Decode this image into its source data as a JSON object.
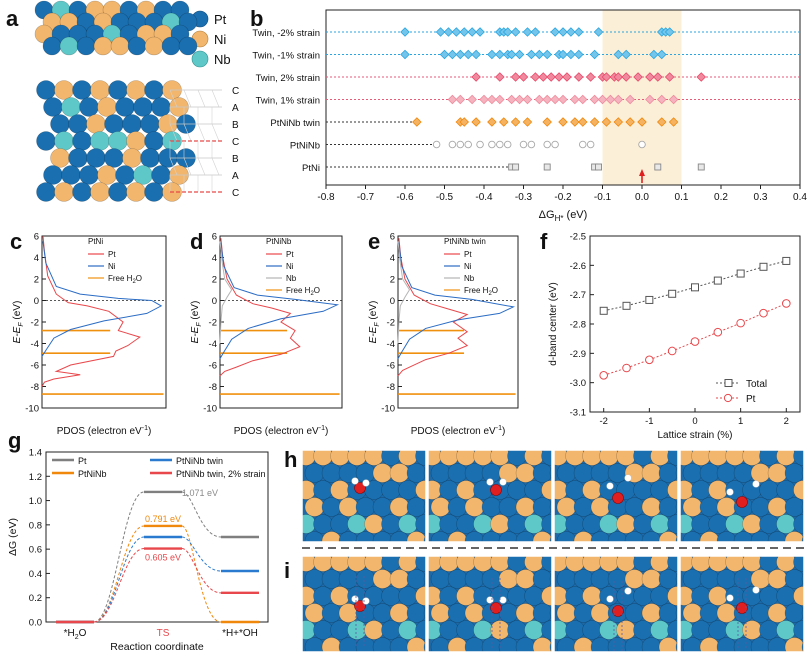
{
  "panel_letters": [
    "a",
    "b",
    "c",
    "d",
    "e",
    "f",
    "g",
    "h",
    "i"
  ],
  "panel_a": {
    "legend": [
      {
        "label": "Pt",
        "color": "#1a6fb0"
      },
      {
        "label": "Ni",
        "color": "#f2b66d"
      },
      {
        "label": "Nb",
        "color": "#5ec8c8"
      }
    ],
    "stacking": [
      "C",
      "A",
      "B",
      "C",
      "B",
      "A",
      "C"
    ]
  },
  "chart_data": [
    {
      "panel": "b",
      "type": "scatter",
      "xlabel_main": "ΔG",
      "xlabel_sub": "H*",
      "xlabel_unit": "(eV)",
      "xlim": [
        -0.8,
        0.4
      ],
      "xticks": [
        "-0.8",
        "-0.7",
        "-0.6",
        "-0.5",
        "-0.4",
        "-0.3",
        "-0.2",
        "-0.1",
        "0.0",
        "0.1",
        "0.2",
        "0.3",
        "0.4"
      ],
      "highlight_range": [
        -0.1,
        0.1
      ],
      "series": [
        {
          "name": "Twin, -2% strain",
          "color": "#29a6e0",
          "marker": "diamond",
          "x": [
            -0.6,
            -0.51,
            -0.49,
            -0.47,
            -0.45,
            -0.43,
            -0.41,
            -0.36,
            -0.35,
            -0.34,
            -0.32,
            -0.29,
            -0.27,
            -0.22,
            -0.2,
            -0.18,
            -0.16,
            -0.11,
            0.05,
            0.06,
            0.07
          ]
        },
        {
          "name": "Twin, -1% strain",
          "color": "#29a6e0",
          "marker": "diamond",
          "x": [
            -0.6,
            -0.5,
            -0.48,
            -0.46,
            -0.44,
            -0.42,
            -0.38,
            -0.36,
            -0.34,
            -0.33,
            -0.31,
            -0.28,
            -0.26,
            -0.24,
            -0.21,
            -0.2,
            -0.18,
            -0.16,
            -0.12,
            -0.06,
            -0.04,
            0.03,
            0.05
          ]
        },
        {
          "name": "Twin, 2% strain",
          "color": "#e84a6a",
          "marker": "diamond",
          "x": [
            -0.42,
            -0.36,
            -0.32,
            -0.3,
            -0.27,
            -0.25,
            -0.23,
            -0.21,
            -0.19,
            -0.16,
            -0.13,
            -0.1,
            -0.09,
            -0.07,
            -0.06,
            -0.04,
            -0.01,
            0.02,
            0.04,
            0.07,
            0.15
          ]
        },
        {
          "name": "Twin, 1% strain",
          "color": "#f08a9c",
          "marker": "diamond",
          "x": [
            -0.48,
            -0.46,
            -0.43,
            -0.4,
            -0.38,
            -0.36,
            -0.33,
            -0.31,
            -0.29,
            -0.26,
            -0.24,
            -0.22,
            -0.2,
            -0.17,
            -0.15,
            -0.12,
            -0.1,
            -0.08,
            -0.06,
            -0.03,
            0.02,
            0.05,
            0.08
          ]
        },
        {
          "name": "PtNiNb twin",
          "color": "#f0880c",
          "marker": "diamond",
          "x": [
            -0.57,
            -0.46,
            -0.45,
            -0.42,
            -0.38,
            -0.35,
            -0.32,
            -0.29,
            -0.24,
            -0.2,
            -0.17,
            -0.15,
            -0.12,
            -0.09,
            -0.06,
            -0.03,
            0.0,
            0.05,
            0.08
          ]
        },
        {
          "name": "PtNiNb",
          "color": "#a8a8a8",
          "marker": "circle",
          "x": [
            -0.52,
            -0.48,
            -0.46,
            -0.44,
            -0.41,
            -0.38,
            -0.36,
            -0.34,
            -0.3,
            -0.28,
            -0.24,
            -0.22,
            -0.15,
            -0.13,
            0.0
          ]
        },
        {
          "name": "PtNi",
          "color": "#888888",
          "marker": "square",
          "x": [
            -0.33,
            -0.32,
            -0.24,
            -0.12,
            -0.11,
            0.04,
            0.15
          ]
        }
      ]
    },
    {
      "panel": "c",
      "type": "line",
      "title": "PtNi",
      "ylabel": "E-E",
      "ylabel_sub": "F",
      "ylabel_unit": "(eV)",
      "xlabel": "PDOS (electron eV",
      "xlabel_sup": "-1",
      "xlabel_end": ")",
      "ylim": [
        -10,
        6
      ],
      "yticks": [
        "6",
        "4",
        "2",
        "0",
        "-2",
        "-4",
        "-6",
        "-8",
        "-10"
      ],
      "series_names": [
        "Pt",
        "Ni",
        "Free H"
      ],
      "water_sub": "2",
      "water_end": "O",
      "water_levels": [
        -2.8,
        -4.9,
        -8.7
      ],
      "series": [
        {
          "name": "Pt",
          "color": "#e8474b",
          "points": [
            [
              0.02,
              6.0
            ],
            [
              0.05,
              4.6
            ],
            [
              0.12,
              2.3
            ],
            [
              0.3,
              0.6
            ],
            [
              0.55,
              -0.2
            ],
            [
              0.95,
              -0.5
            ],
            [
              1.4,
              -1.0
            ],
            [
              1.7,
              -2.0
            ],
            [
              1.6,
              -2.8
            ],
            [
              2.05,
              -3.4
            ],
            [
              1.8,
              -4.2
            ],
            [
              1.55,
              -4.7
            ],
            [
              1.5,
              -5.2
            ],
            [
              0.6,
              -6.0
            ],
            [
              0.3,
              -6.6
            ],
            [
              0.8,
              -6.9
            ],
            [
              0.25,
              -7.3
            ],
            [
              0.05,
              -7.6
            ],
            [
              0.0,
              -8.0
            ]
          ]
        },
        {
          "name": "Ni",
          "color": "#2b6cc4",
          "points": [
            [
              0.02,
              5.5
            ],
            [
              0.08,
              3.5
            ],
            [
              0.3,
              1.3
            ],
            [
              0.8,
              0.6
            ],
            [
              1.6,
              0.2
            ],
            [
              2.3,
              0.0
            ],
            [
              2.5,
              -0.5
            ],
            [
              2.2,
              -1.2
            ],
            [
              1.3,
              -1.9
            ],
            [
              0.6,
              -2.7
            ],
            [
              0.25,
              -3.5
            ],
            [
              0.1,
              -4.5
            ],
            [
              0.0,
              -5.2
            ]
          ]
        }
      ]
    },
    {
      "panel": "d",
      "type": "line",
      "title": "PtNiNb",
      "ylabel": "E-E",
      "ylabel_sub": "F",
      "ylabel_unit": "(eV)",
      "xlabel": "PDOS (electron eV",
      "xlabel_sup": "-1",
      "xlabel_end": ")",
      "ylim": [
        -10,
        6
      ],
      "yticks": [
        "6",
        "4",
        "2",
        "0",
        "-2",
        "-4",
        "-6",
        "-8",
        "-10"
      ],
      "series_names": [
        "Pt",
        "Ni",
        "Nb",
        "Free H"
      ],
      "water_sub": "2",
      "water_end": "O",
      "water_levels": [
        -2.8,
        -4.9,
        -8.7
      ],
      "series": [
        {
          "name": "Pt",
          "color": "#e8474b",
          "points": [
            [
              0.02,
              5.8
            ],
            [
              0.06,
              4.0
            ],
            [
              0.15,
              2.0
            ],
            [
              0.35,
              0.5
            ],
            [
              0.7,
              -0.3
            ],
            [
              1.1,
              -0.7
            ],
            [
              1.5,
              -1.2
            ],
            [
              1.3,
              -2.0
            ],
            [
              1.6,
              -2.8
            ],
            [
              1.5,
              -3.5
            ],
            [
              1.7,
              -4.3
            ],
            [
              1.3,
              -5.0
            ],
            [
              0.7,
              -5.6
            ],
            [
              0.35,
              -6.2
            ],
            [
              0.1,
              -6.6
            ],
            [
              0.0,
              -7.0
            ]
          ]
        },
        {
          "name": "Ni",
          "color": "#2b6cc4",
          "points": [
            [
              0.02,
              5.4
            ],
            [
              0.08,
              3.2
            ],
            [
              0.3,
              1.2
            ],
            [
              0.8,
              0.5
            ],
            [
              1.6,
              0.1
            ],
            [
              2.5,
              -0.4
            ],
            [
              2.2,
              -1.0
            ],
            [
              1.3,
              -1.7
            ],
            [
              0.6,
              -2.6
            ],
            [
              0.25,
              -3.6
            ],
            [
              0.08,
              -4.8
            ],
            [
              0.0,
              -5.4
            ]
          ]
        },
        {
          "name": "Nb",
          "color": "#b5b5b5",
          "points": [
            [
              0.0,
              5.5
            ],
            [
              0.05,
              3.5
            ],
            [
              0.1,
              2.0
            ],
            [
              0.25,
              1.0
            ],
            [
              0.15,
              0.3
            ],
            [
              0.05,
              -0.5
            ],
            [
              0.02,
              -2.0
            ],
            [
              0.0,
              -4.0
            ]
          ]
        }
      ]
    },
    {
      "panel": "e",
      "type": "line",
      "title": "PtNiNb twin",
      "ylabel": "E-E",
      "ylabel_sub": "F",
      "ylabel_unit": "(eV)",
      "xlabel": "PDOS (electron eV",
      "xlabel_sup": "-1",
      "xlabel_end": ")",
      "ylim": [
        -10,
        6
      ],
      "yticks": [
        "6",
        "4",
        "2",
        "0",
        "-2",
        "-4",
        "-6",
        "-8",
        "-10"
      ],
      "series_names": [
        "Pt",
        "Ni",
        "Nb",
        "Free H"
      ],
      "water_sub": "2",
      "water_end": "O",
      "water_levels": [
        -2.8,
        -4.9,
        -8.7
      ],
      "series": [
        {
          "name": "Pt",
          "color": "#e8474b",
          "points": [
            [
              0.02,
              5.8
            ],
            [
              0.06,
              4.0
            ],
            [
              0.15,
              2.0
            ],
            [
              0.35,
              0.5
            ],
            [
              0.7,
              -0.3
            ],
            [
              1.1,
              -0.8
            ],
            [
              1.5,
              -1.3
            ],
            [
              1.2,
              -2.0
            ],
            [
              1.5,
              -2.9
            ],
            [
              1.3,
              -3.5
            ],
            [
              1.5,
              -4.2
            ],
            [
              1.1,
              -4.9
            ],
            [
              0.6,
              -5.5
            ],
            [
              0.3,
              -6.1
            ],
            [
              0.1,
              -6.5
            ],
            [
              0.0,
              -7.0
            ]
          ]
        },
        {
          "name": "Ni",
          "color": "#2b6cc4",
          "points": [
            [
              0.02,
              5.4
            ],
            [
              0.08,
              3.2
            ],
            [
              0.3,
              1.2
            ],
            [
              0.8,
              0.5
            ],
            [
              1.6,
              0.1
            ],
            [
              2.5,
              -0.6
            ],
            [
              2.2,
              -1.2
            ],
            [
              1.3,
              -1.8
            ],
            [
              0.6,
              -2.6
            ],
            [
              0.25,
              -3.6
            ],
            [
              0.08,
              -4.8
            ],
            [
              0.0,
              -5.4
            ]
          ]
        },
        {
          "name": "Nb",
          "color": "#b5b5b5",
          "points": [
            [
              0.0,
              5.5
            ],
            [
              0.05,
              3.5
            ],
            [
              0.1,
              2.0
            ],
            [
              0.25,
              1.0
            ],
            [
              0.15,
              0.3
            ],
            [
              0.05,
              -0.5
            ],
            [
              0.02,
              -2.0
            ],
            [
              0.0,
              -4.0
            ]
          ]
        }
      ]
    },
    {
      "panel": "f",
      "type": "line",
      "ylabel": "d-band center (eV)",
      "xlabel": "Lattice strain (%)",
      "xlim": [
        -2.3,
        2.3
      ],
      "ylim": [
        -3.1,
        -2.5
      ],
      "xticks": [
        "-2",
        "-1",
        "0",
        "1",
        "2"
      ],
      "yticks": [
        "-2.5",
        "-2.6",
        "-2.7",
        "-2.8",
        "-2.9",
        "-3.0",
        "-3.1"
      ],
      "legend_position": "bottom-right",
      "series": [
        {
          "name": "Total",
          "color": "#555555",
          "marker": "square",
          "x": [
            -2.0,
            -1.5,
            -1.0,
            -0.5,
            0.0,
            0.5,
            1.0,
            1.5,
            2.0
          ],
          "y": [
            -2.755,
            -2.738,
            -2.718,
            -2.697,
            -2.675,
            -2.652,
            -2.628,
            -2.605,
            -2.585
          ]
        },
        {
          "name": "Pt",
          "color": "#e8474b",
          "marker": "circle",
          "x": [
            -2.0,
            -1.5,
            -1.0,
            -0.5,
            0.0,
            0.5,
            1.0,
            1.5,
            2.0
          ],
          "y": [
            -2.975,
            -2.95,
            -2.922,
            -2.892,
            -2.86,
            -2.828,
            -2.797,
            -2.763,
            -2.73
          ]
        }
      ]
    },
    {
      "panel": "g",
      "type": "line",
      "ylabel": "ΔG (eV)",
      "xlabel": "Reaction coordinate",
      "ylim": [
        0.0,
        1.4
      ],
      "yticks": [
        "1.4",
        "1.2",
        "1.0",
        "0.8",
        "0.6",
        "0.4",
        "0.2",
        "0.0"
      ],
      "states": [
        {
          "main": "*H",
          "sub": "2",
          "end": "O"
        },
        {
          "main": "TS",
          "sub": "",
          "end": ""
        },
        {
          "main": "*H+*OH",
          "sub": "",
          "end": ""
        }
      ],
      "series": [
        {
          "name": "Pt",
          "color": "#7f7f7f",
          "values": [
            0.0,
            1.071,
            0.7
          ]
        },
        {
          "name": "PtNiNb",
          "color": "#f0880c",
          "values": [
            0.0,
            0.791,
            0.0
          ]
        },
        {
          "name": "PtNiNb twin",
          "color": "#2a7bd0",
          "values": [
            0.0,
            0.7,
            0.42
          ]
        },
        {
          "name": "PtNiNb twin, 2% strain",
          "color": "#e8474b",
          "values": [
            0.0,
            0.605,
            0.24
          ]
        }
      ],
      "annotations": [
        "1.071 eV",
        "0.791 eV",
        "0.605 eV"
      ]
    }
  ]
}
